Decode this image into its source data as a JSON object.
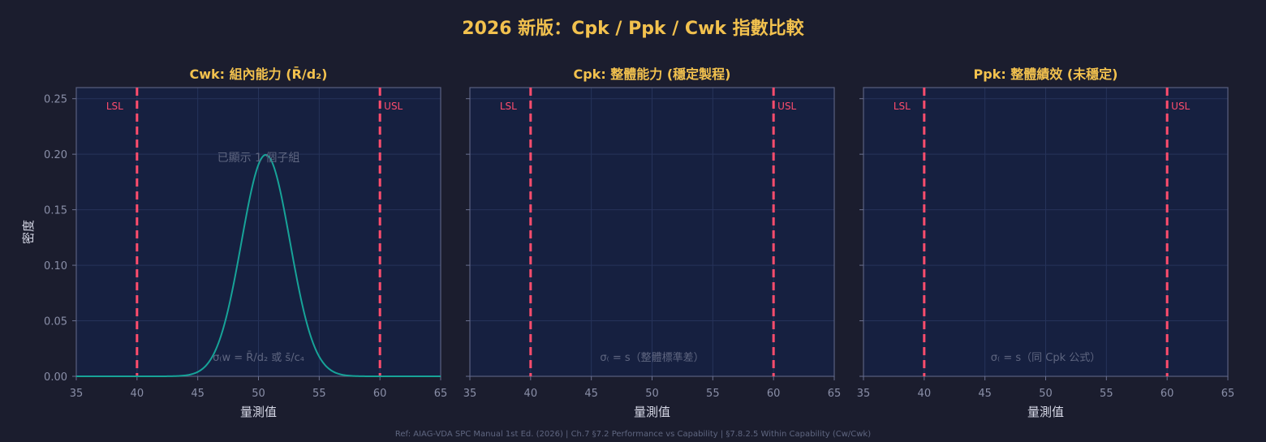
{
  "title": "2026 新版：Cpk / Ppk / Cwk 指數比較",
  "footer": "Ref: AIAG-VDA SPC Manual 1st Ed. (2026) | Ch.7 §7.2 Performance vs Capability | §7.8.2.5 Within Capability (Cw/Cwk)",
  "colors": {
    "spec_line": "#ff4d6d",
    "curve": "#17a398",
    "title": "#f2c14e",
    "panel_bg": "#162040"
  },
  "chart_data": [
    {
      "type": "line",
      "title": "Cwk: 組內能力 (R̄/d₂)",
      "xlabel": "量測值",
      "ylabel": "密度",
      "xlim": [
        35,
        65
      ],
      "ylim": [
        0,
        0.26
      ],
      "xticks": [
        "35",
        "40",
        "45",
        "50",
        "55",
        "60",
        "65"
      ],
      "yticks": [
        "0.00",
        "0.05",
        "0.10",
        "0.15",
        "0.20",
        "0.25"
      ],
      "grid": true,
      "spec_limits": {
        "LSL": 40,
        "USL": 60,
        "lsl_label": "LSL",
        "usl_label": "USL"
      },
      "series": [
        {
          "distribution": "normal",
          "mean": 50.6,
          "sigma": 2.0
        }
      ],
      "annotations": [
        "已顯示 1 個子組",
        "σ₍w = R̄/d₂ 或 s̄/c₄"
      ]
    },
    {
      "type": "line",
      "title": "Cpk: 整體能力 (穩定製程)",
      "xlabel": "量測值",
      "ylabel": "",
      "xlim": [
        35,
        65
      ],
      "ylim": [
        0,
        0.26
      ],
      "xticks": [
        "35",
        "40",
        "45",
        "50",
        "55",
        "60",
        "65"
      ],
      "grid": true,
      "spec_limits": {
        "LSL": 40,
        "USL": 60,
        "lsl_label": "LSL",
        "usl_label": "USL"
      },
      "series": [],
      "annotations": [
        "σ₍ = s（整體標準差）"
      ]
    },
    {
      "type": "line",
      "title": "Ppk: 整體績效 (未穩定)",
      "xlabel": "量測值",
      "ylabel": "",
      "xlim": [
        35,
        65
      ],
      "ylim": [
        0,
        0.26
      ],
      "xticks": [
        "35",
        "40",
        "45",
        "50",
        "55",
        "60",
        "65"
      ],
      "grid": true,
      "spec_limits": {
        "LSL": 40,
        "USL": 60,
        "lsl_label": "LSL",
        "usl_label": "USL"
      },
      "series": [],
      "annotations": [
        "σ₍ = s（同 Cpk 公式）"
      ]
    }
  ]
}
